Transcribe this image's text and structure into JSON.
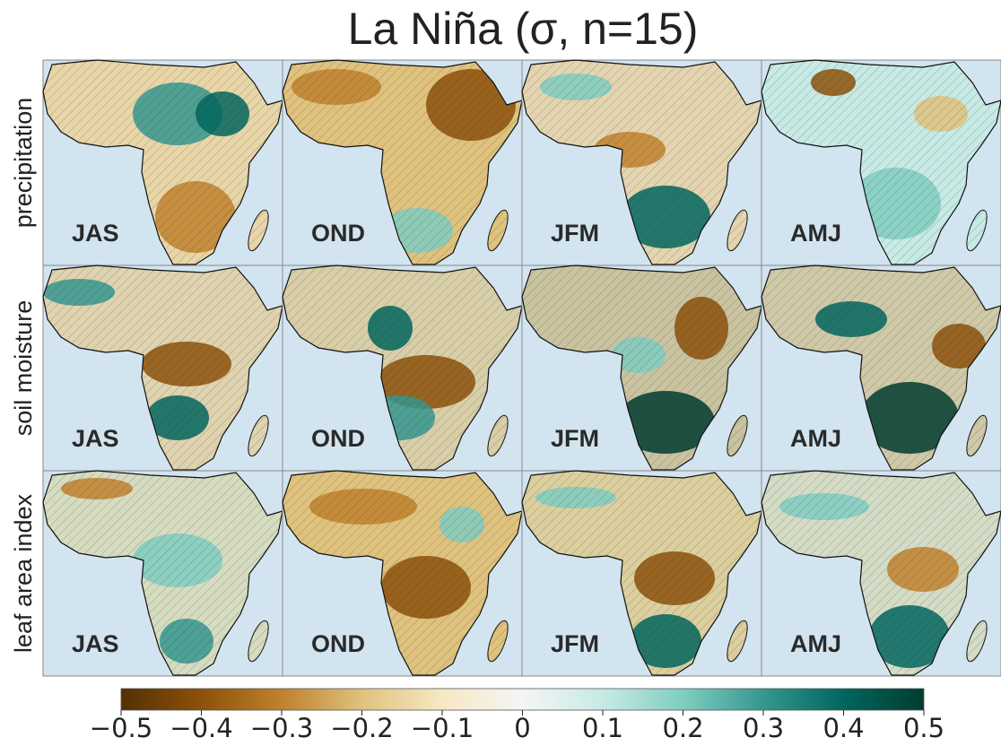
{
  "title": "La Niña (σ, n=15)",
  "rows": [
    {
      "label": "precipitation",
      "panels": [
        "JAS",
        "OND",
        "JFM",
        "AMJ"
      ]
    },
    {
      "label": "soil moisture",
      "panels": [
        "JAS",
        "OND",
        "JFM",
        "AMJ"
      ]
    },
    {
      "label": "leaf area index",
      "panels": [
        "JAS",
        "OND",
        "JFM",
        "AMJ"
      ]
    }
  ],
  "colorbar": {
    "lim": [
      -0.5,
      0.5
    ],
    "ticks": [
      {
        "value": -0.5,
        "label": "−0.5"
      },
      {
        "value": -0.4,
        "label": "−0.4"
      },
      {
        "value": -0.3,
        "label": "−0.3"
      },
      {
        "value": -0.2,
        "label": "−0.2"
      },
      {
        "value": -0.1,
        "label": "−0.1"
      },
      0.0,
      0.1,
      0.2,
      0.3,
      0.4,
      0.5
    ],
    "colors": [
      "#543005",
      "#8c510a",
      "#bf812d",
      "#dfc27d",
      "#f6e8c3",
      "#f5f5f5",
      "#c7eae5",
      "#80cdc1",
      "#35978f",
      "#01665e",
      "#003c30"
    ]
  }
}
